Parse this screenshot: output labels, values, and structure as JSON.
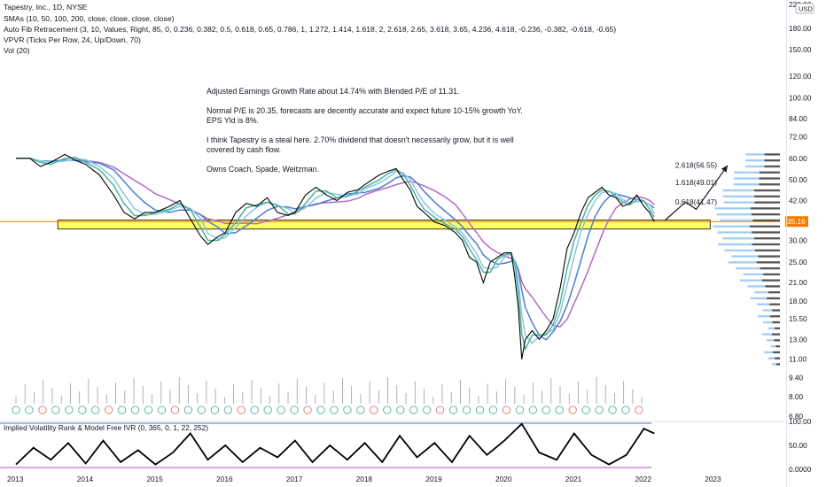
{
  "header": {
    "title": "Tapestry, Inc., 1D, NYSE",
    "indicators": [
      "SMAs (10, 50, 100, 200, close, close, close, close)",
      "Auto Fib Retracement (3, 10, Values, Right, 85, 0, 0.236, 0.382, 0.5, 0.618, 0.65, 0.786, 1, 1.272, 1.414, 1.618, 2, 2.618, 2.65, 3.618, 3.65, 4.236, 4.618, -0.236, -0.382, -0.618, -0.65)",
      "VPVR (Ticks Per Row, 24, Up/Down, 70)",
      "Vol (20)"
    ]
  },
  "note": {
    "lines": [
      "Adjusted Earnings Growth Rate about 14.74% with Blended P/E of 11.31.",
      "Normal P/E is 20.35, forecasts are decently accurate and expect future 10-15% growth YoY. EPS Yld is 8%.",
      "I think Tapestry is a steal here. 2.70% dividend that doesn't necessarily grow, but it is well covered by cash flow.",
      "Owns Coach, Spade, Weitzman."
    ]
  },
  "currency": "USD",
  "current_price_label": "35.16",
  "colors": {
    "price": "#000000",
    "sma10": "#4fb39a",
    "sma50": "#86c7e8",
    "sma100": "#4a7fd6",
    "sma200": "#b66bc4",
    "support_fill": "#ffff66",
    "price_line": "#f57c00",
    "projection": "#1a1a1a",
    "vpvr_up": "#90c4f5",
    "vpvr_down": "#2b2b2b",
    "ivr": "#000000",
    "ivr_blue": "#4a6fd6",
    "ivr_purple": "#b54ec4"
  },
  "chart_data": [
    {
      "type": "line",
      "title": "Tapestry, Inc., 1D, NYSE",
      "scale": "log",
      "ylim": [
        6.5,
        225
      ],
      "y_ticks": [
        220.0,
        180.0,
        150.0,
        120.0,
        100.0,
        84.0,
        72.0,
        60.0,
        50.0,
        42.0,
        35.16,
        30.0,
        25.0,
        21.0,
        18.0,
        15.5,
        13.0,
        11.0,
        9.4,
        8.0,
        6.8
      ],
      "x_ticks": [
        "2013",
        "2014",
        "2015",
        "2016",
        "2017",
        "2018",
        "2019",
        "2020",
        "2021",
        "2022",
        "2023"
      ],
      "series": [
        {
          "points": [
            [
              2013.0,
              60
            ],
            [
              2013.2,
              60
            ],
            [
              2013.35,
              56
            ],
            [
              2013.5,
              58
            ],
            [
              2013.7,
              62
            ],
            [
              2013.85,
              59
            ],
            [
              2014.0,
              57
            ],
            [
              2014.2,
              52
            ],
            [
              2014.4,
              44
            ],
            [
              2014.55,
              38
            ],
            [
              2014.7,
              36
            ],
            [
              2014.85,
              38
            ],
            [
              2015.0,
              38
            ],
            [
              2015.2,
              40
            ],
            [
              2015.35,
              42
            ],
            [
              2015.5,
              36
            ],
            [
              2015.65,
              31
            ],
            [
              2015.75,
              29
            ],
            [
              2015.9,
              31
            ],
            [
              2016.0,
              32
            ],
            [
              2016.15,
              38
            ],
            [
              2016.3,
              41
            ],
            [
              2016.45,
              40
            ],
            [
              2016.6,
              43
            ],
            [
              2016.75,
              38
            ],
            [
              2016.9,
              37
            ],
            [
              2017.0,
              38
            ],
            [
              2017.15,
              44
            ],
            [
              2017.3,
              47
            ],
            [
              2017.45,
              44
            ],
            [
              2017.6,
              42
            ],
            [
              2017.75,
              45
            ],
            [
              2017.9,
              46
            ],
            [
              2018.0,
              48
            ],
            [
              2018.2,
              52
            ],
            [
              2018.35,
              54
            ],
            [
              2018.45,
              55
            ],
            [
              2018.55,
              50
            ],
            [
              2018.65,
              46
            ],
            [
              2018.75,
              40
            ],
            [
              2018.85,
              38
            ],
            [
              2019.0,
              35
            ],
            [
              2019.15,
              34
            ],
            [
              2019.3,
              32
            ],
            [
              2019.4,
              30
            ],
            [
              2019.5,
              26
            ],
            [
              2019.6,
              25
            ],
            [
              2019.7,
              21
            ],
            [
              2019.8,
              25
            ],
            [
              2019.9,
              26
            ],
            [
              2020.0,
              27
            ],
            [
              2020.1,
              27
            ],
            [
              2020.15,
              22
            ],
            [
              2020.2,
              17
            ],
            [
              2020.25,
              11
            ],
            [
              2020.3,
              13
            ],
            [
              2020.4,
              14
            ],
            [
              2020.5,
              13
            ],
            [
              2020.6,
              14
            ],
            [
              2020.7,
              15.5
            ],
            [
              2020.8,
              20
            ],
            [
              2020.9,
              28
            ],
            [
              2021.0,
              32
            ],
            [
              2021.1,
              38
            ],
            [
              2021.2,
              43
            ],
            [
              2021.3,
              45
            ],
            [
              2021.4,
              47
            ],
            [
              2021.5,
              44
            ],
            [
              2021.6,
              43
            ],
            [
              2021.7,
              40
            ],
            [
              2021.8,
              41
            ],
            [
              2021.9,
              44
            ],
            [
              2022.0,
              40
            ],
            [
              2022.08,
              38
            ],
            [
              2022.15,
              35.16
            ]
          ]
        }
      ],
      "fib_levels": [
        {
          "label": "2.618(56.55)",
          "value": 56.55
        },
        {
          "label": "1.618(49.01)",
          "value": 49.01
        },
        {
          "label": "0.618(41.47)",
          "value": 41.47
        }
      ],
      "support_zone": [
        33.0,
        35.6
      ],
      "projection": [
        [
          2022.3,
          35.5
        ],
        [
          2022.6,
          41.5
        ],
        [
          2022.75,
          39
        ],
        [
          2023.2,
          56.5
        ]
      ]
    },
    {
      "type": "line",
      "title": "Implied Volatility Rank & Model Free IVR (0, 365, 0, 1, 22, 252)",
      "ylim": [
        0,
        100
      ],
      "y_ticks": [
        100.0,
        50.0,
        0.0
      ],
      "series": [
        {
          "points": [
            [
              2013.0,
              10
            ],
            [
              2013.25,
              45
            ],
            [
              2013.5,
              20
            ],
            [
              2013.75,
              55
            ],
            [
              2014.0,
              12
            ],
            [
              2014.25,
              60
            ],
            [
              2014.5,
              15
            ],
            [
              2014.75,
              40
            ],
            [
              2015.0,
              10
            ],
            [
              2015.25,
              35
            ],
            [
              2015.5,
              75
            ],
            [
              2015.75,
              20
            ],
            [
              2016.0,
              50
            ],
            [
              2016.25,
              15
            ],
            [
              2016.5,
              45
            ],
            [
              2016.75,
              25
            ],
            [
              2017.0,
              60
            ],
            [
              2017.25,
              15
            ],
            [
              2017.5,
              50
            ],
            [
              2017.75,
              20
            ],
            [
              2018.0,
              55
            ],
            [
              2018.25,
              15
            ],
            [
              2018.5,
              70
            ],
            [
              2018.75,
              25
            ],
            [
              2019.0,
              55
            ],
            [
              2019.25,
              15
            ],
            [
              2019.5,
              70
            ],
            [
              2019.75,
              30
            ],
            [
              2020.0,
              60
            ],
            [
              2020.25,
              95
            ],
            [
              2020.5,
              35
            ],
            [
              2020.75,
              20
            ],
            [
              2021.0,
              75
            ],
            [
              2021.25,
              30
            ],
            [
              2021.5,
              10
            ],
            [
              2021.75,
              30
            ],
            [
              2022.0,
              85
            ],
            [
              2022.15,
              75
            ]
          ]
        }
      ]
    }
  ]
}
